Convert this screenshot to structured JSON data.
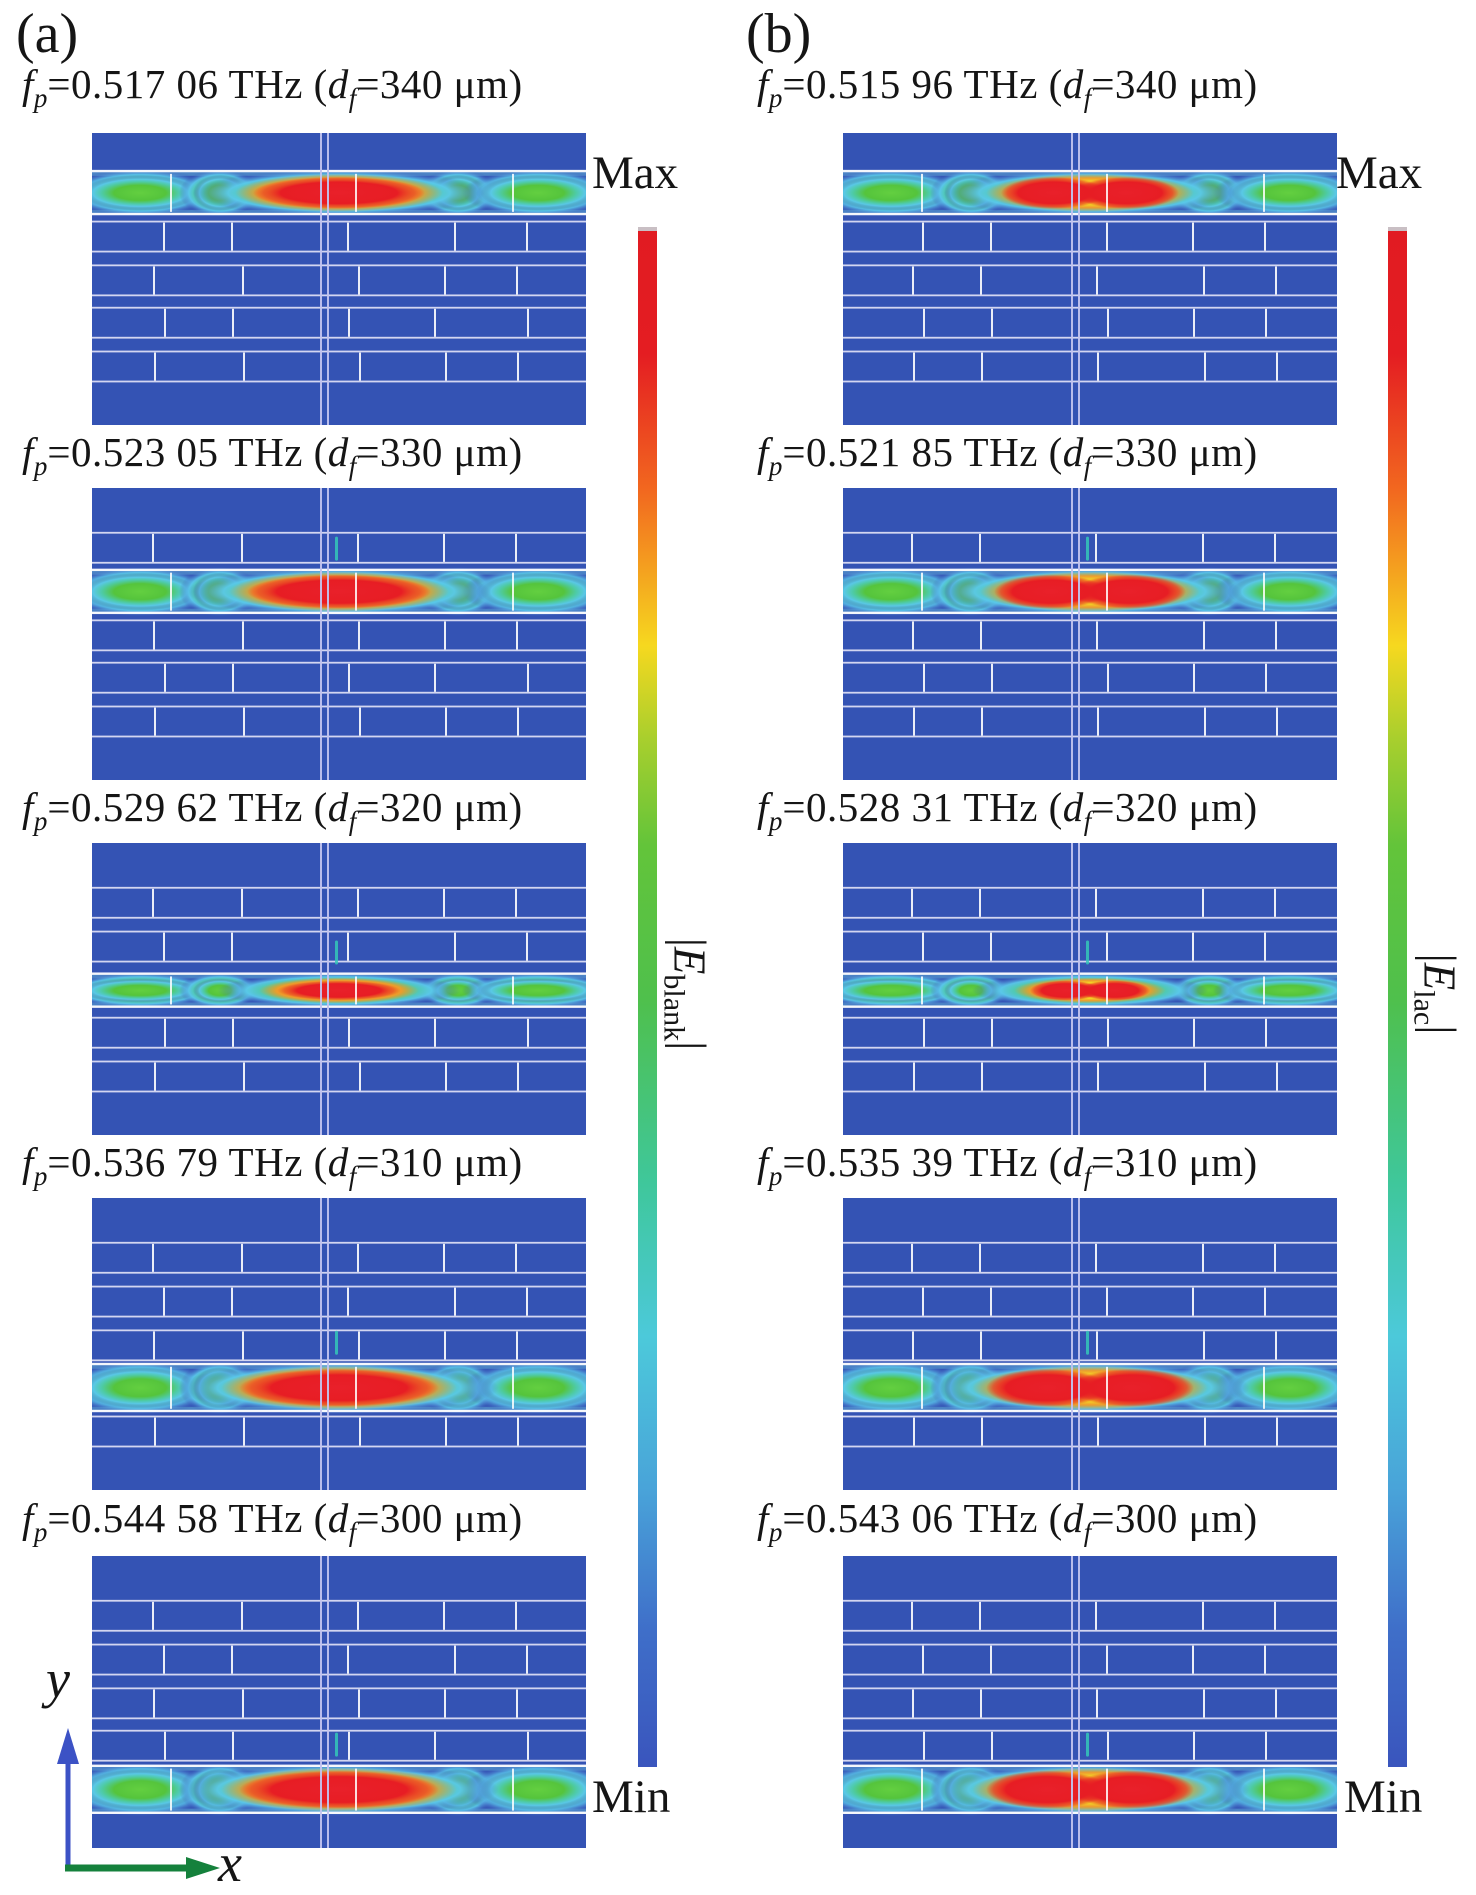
{
  "figure_labels": {
    "a": "(a)",
    "b": "(b)"
  },
  "axes": {
    "x": "x",
    "y": "y"
  },
  "colorbar_a": {
    "max": "Max",
    "min": "Min",
    "bar_open": "|",
    "E": "E",
    "sub": "blank",
    "bar_close": "|"
  },
  "colorbar_b": {
    "max": "Max",
    "min": "Min",
    "bar_open": "|",
    "E": "E",
    "sub": "lac",
    "bar_close": "|"
  },
  "symbols": {
    "f": "f",
    "p": "p",
    "d": "d",
    "f_sub": "f"
  },
  "columns": [
    {
      "key": "a",
      "panels": [
        {
          "fp_value": "0.517 06",
          "df_value": "340",
          "fp_text": "=0.517 06 THz (",
          "df_text": "=340 μm)",
          "band_slot": 0,
          "band_half": 21,
          "blob_ry": 19,
          "core_rx": 86,
          "split_core": false
        },
        {
          "fp_value": "0.523 05",
          "df_value": "330",
          "fp_text": "=0.523 05 THz (",
          "df_text": "=330 μm)",
          "band_slot": 1,
          "band_half": 21,
          "blob_ry": 20,
          "core_rx": 92,
          "split_core": false
        },
        {
          "fp_value": "0.529 62",
          "df_value": "320",
          "fp_text": "=0.529 62 THz (",
          "df_text": "=320 μm)",
          "band_slot": 2,
          "band_half": 16,
          "blob_ry": 13,
          "core_rx": 62,
          "split_core": false
        },
        {
          "fp_value": "0.536 79",
          "df_value": "310",
          "fp_text": "=0.536 79 THz (",
          "df_text": "=310 μm)",
          "band_slot": 3,
          "band_half": 23,
          "blob_ry": 22,
          "core_rx": 100,
          "split_core": false
        },
        {
          "fp_value": "0.544 58",
          "df_value": "300",
          "fp_text": "=0.544 58 THz (",
          "df_text": "=300 μm)",
          "band_slot": 4,
          "band_half": 23,
          "blob_ry": 22,
          "core_rx": 100,
          "split_core": false
        }
      ]
    },
    {
      "key": "b",
      "panels": [
        {
          "fp_value": "0.515 96",
          "df_value": "340",
          "fp_text": "=0.515 96 THz (",
          "df_text": "=340 μm)",
          "band_slot": 0,
          "band_half": 21,
          "blob_ry": 19,
          "core_rx": 86,
          "split_core": true
        },
        {
          "fp_value": "0.521 85",
          "df_value": "330",
          "fp_text": "=0.521 85 THz (",
          "df_text": "=330 μm)",
          "band_slot": 1,
          "band_half": 21,
          "blob_ry": 20,
          "core_rx": 92,
          "split_core": true
        },
        {
          "fp_value": "0.528 31",
          "df_value": "320",
          "fp_text": "=0.528 31 THz (",
          "df_text": "=320 μm)",
          "band_slot": 2,
          "band_half": 16,
          "blob_ry": 13,
          "core_rx": 58,
          "split_core": true
        },
        {
          "fp_value": "0.535 39",
          "df_value": "310",
          "fp_text": "=0.535 39 THz (",
          "df_text": "=310 μm)",
          "band_slot": 3,
          "band_half": 23,
          "blob_ry": 22,
          "core_rx": 100,
          "split_core": true
        },
        {
          "fp_value": "0.543 06",
          "df_value": "300",
          "fp_text": "=0.543 06 THz (",
          "df_text": "=300 μm)",
          "band_slot": 4,
          "band_half": 23,
          "blob_ry": 22,
          "core_rx": 100,
          "split_core": true
        }
      ]
    }
  ],
  "colors": {
    "panel_blue": "#3453b4",
    "grid_line": "#dcddf4",
    "center_line": "#c2c3ef",
    "blob_green": "#55c43c",
    "blob_cyan": "#55cfe0",
    "blob_yellow": "#f6e724",
    "blob_red": "#e81e25",
    "colorbar_top_red": "#e11b22",
    "colorbar_bottom_blue": "#3a55bd",
    "axis_x_green": "#15813c",
    "axis_y_blue": "#3c52c5"
  }
}
